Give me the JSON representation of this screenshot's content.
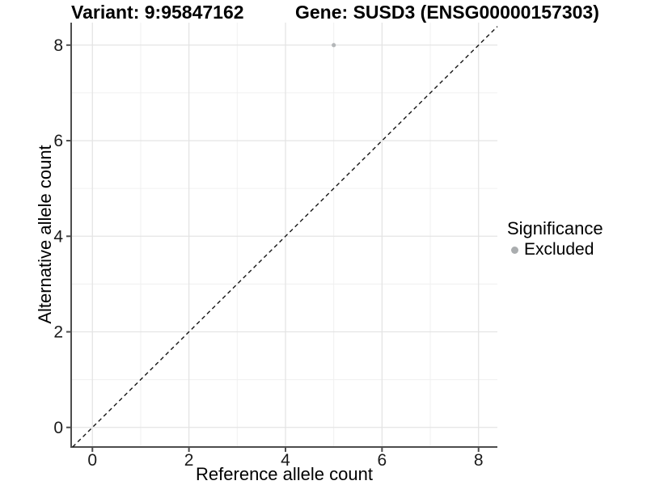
{
  "header": {
    "variant_title": "Variant: 9:95847162",
    "gene_title": "Gene: SUSD3 (ENSG00000157303)"
  },
  "chart_data": {
    "type": "scatter",
    "xlabel": "Reference allele count",
    "ylabel": "Alternative allele count",
    "x_ticks": [
      0,
      2,
      4,
      6,
      8
    ],
    "y_ticks": [
      0,
      2,
      4,
      6,
      8
    ],
    "x_minor_ticks": [
      1,
      3,
      5,
      7
    ],
    "y_minor_ticks": [
      1,
      3,
      5,
      7
    ],
    "xlim": [
      -0.44,
      8.39
    ],
    "ylim": [
      -0.41,
      8.47
    ],
    "grid": true,
    "legend_position": "right",
    "identity_line": {
      "style": "dashed",
      "from": [
        -0.41,
        -0.41
      ],
      "to": [
        8.39,
        8.39
      ]
    },
    "series": [
      {
        "name": "Excluded",
        "color": "#b4b7b9",
        "points": [
          {
            "x": 5,
            "y": 8
          }
        ]
      }
    ],
    "legend": {
      "title": "Significance",
      "items": [
        {
          "label": "Excluded",
          "color": "#aaadaf"
        }
      ]
    }
  },
  "colors": {
    "background": "#ffffff",
    "grid_major": "#e4e4e4",
    "grid_minor": "#f0f0f0",
    "axis_line": "#4d4d4d",
    "tick_text": "#1a1a1a",
    "dashed_line": "#151515"
  }
}
